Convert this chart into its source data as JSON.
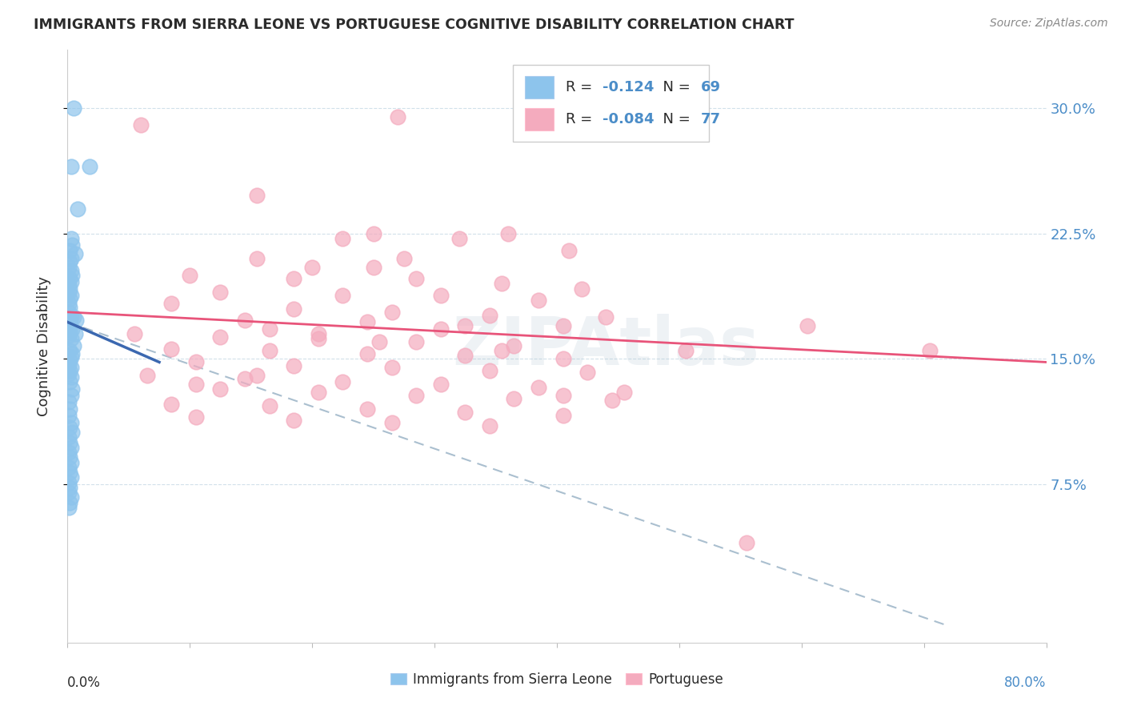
{
  "title": "IMMIGRANTS FROM SIERRA LEONE VS PORTUGUESE COGNITIVE DISABILITY CORRELATION CHART",
  "source": "Source: ZipAtlas.com",
  "ylabel": "Cognitive Disability",
  "yticks": [
    "7.5%",
    "15.0%",
    "22.5%",
    "30.0%"
  ],
  "ytick_vals": [
    0.075,
    0.15,
    0.225,
    0.3
  ],
  "xlim": [
    0.0,
    0.8
  ],
  "ylim": [
    -0.02,
    0.335
  ],
  "legend_R1": "-0.124",
  "legend_N1": "69",
  "legend_R2": "-0.084",
  "legend_N2": "77",
  "color_blue": "#8DC4EC",
  "color_pink": "#F4ABBE",
  "color_trend_blue": "#3B68B0",
  "color_trend_pink": "#E8547A",
  "color_trend_dashed": "#AABFCF",
  "color_right_axis": "#4B8DC8",
  "color_text_dark": "#2B2B2B",
  "sierra_leone_x": [
    0.005,
    0.018,
    0.003,
    0.008,
    0.003,
    0.004,
    0.002,
    0.006,
    0.003,
    0.002,
    0.001,
    0.003,
    0.004,
    0.002,
    0.003,
    0.001,
    0.002,
    0.001,
    0.003,
    0.002,
    0.001,
    0.002,
    0.001,
    0.003,
    0.002,
    0.001,
    0.002,
    0.001,
    0.002,
    0.001,
    0.005,
    0.007,
    0.004,
    0.006,
    0.003,
    0.005,
    0.002,
    0.004,
    0.003,
    0.002,
    0.001,
    0.003,
    0.002,
    0.001,
    0.003,
    0.002,
    0.004,
    0.003,
    0.001,
    0.002,
    0.001,
    0.003,
    0.002,
    0.004,
    0.001,
    0.002,
    0.003,
    0.001,
    0.002,
    0.003,
    0.001,
    0.002,
    0.003,
    0.001,
    0.002,
    0.001,
    0.003,
    0.002,
    0.001
  ],
  "sierra_leone_y": [
    0.3,
    0.265,
    0.265,
    0.24,
    0.222,
    0.218,
    0.215,
    0.213,
    0.21,
    0.208,
    0.205,
    0.203,
    0.2,
    0.198,
    0.196,
    0.194,
    0.192,
    0.19,
    0.188,
    0.186,
    0.183,
    0.181,
    0.178,
    0.175,
    0.173,
    0.171,
    0.169,
    0.168,
    0.166,
    0.164,
    0.175,
    0.173,
    0.168,
    0.165,
    0.162,
    0.158,
    0.155,
    0.153,
    0.151,
    0.149,
    0.147,
    0.145,
    0.143,
    0.141,
    0.139,
    0.136,
    0.132,
    0.128,
    0.124,
    0.12,
    0.116,
    0.112,
    0.109,
    0.106,
    0.103,
    0.1,
    0.097,
    0.094,
    0.091,
    0.088,
    0.085,
    0.082,
    0.079,
    0.076,
    0.073,
    0.07,
    0.067,
    0.064,
    0.061
  ],
  "portuguese_x": [
    0.06,
    0.27,
    0.155,
    0.25,
    0.36,
    0.225,
    0.32,
    0.41,
    0.155,
    0.2,
    0.25,
    0.1,
    0.185,
    0.285,
    0.355,
    0.42,
    0.125,
    0.225,
    0.305,
    0.385,
    0.085,
    0.185,
    0.265,
    0.345,
    0.44,
    0.145,
    0.245,
    0.325,
    0.405,
    0.165,
    0.055,
    0.125,
    0.205,
    0.285,
    0.365,
    0.085,
    0.165,
    0.245,
    0.325,
    0.405,
    0.105,
    0.185,
    0.265,
    0.345,
    0.425,
    0.065,
    0.145,
    0.225,
    0.305,
    0.385,
    0.125,
    0.205,
    0.285,
    0.365,
    0.445,
    0.085,
    0.165,
    0.245,
    0.325,
    0.405,
    0.105,
    0.185,
    0.265,
    0.345,
    0.505,
    0.605,
    0.705,
    0.275,
    0.305,
    0.355,
    0.205,
    0.255,
    0.155,
    0.105,
    0.405,
    0.455,
    0.555
  ],
  "portuguese_y": [
    0.29,
    0.295,
    0.248,
    0.225,
    0.225,
    0.222,
    0.222,
    0.215,
    0.21,
    0.205,
    0.205,
    0.2,
    0.198,
    0.198,
    0.195,
    0.192,
    0.19,
    0.188,
    0.188,
    0.185,
    0.183,
    0.18,
    0.178,
    0.176,
    0.175,
    0.173,
    0.172,
    0.17,
    0.17,
    0.168,
    0.165,
    0.163,
    0.162,
    0.16,
    0.158,
    0.156,
    0.155,
    0.153,
    0.152,
    0.15,
    0.148,
    0.146,
    0.145,
    0.143,
    0.142,
    0.14,
    0.138,
    0.136,
    0.135,
    0.133,
    0.132,
    0.13,
    0.128,
    0.126,
    0.125,
    0.123,
    0.122,
    0.12,
    0.118,
    0.116,
    0.115,
    0.113,
    0.112,
    0.11,
    0.155,
    0.17,
    0.155,
    0.21,
    0.168,
    0.155,
    0.165,
    0.16,
    0.14,
    0.135,
    0.128,
    0.13,
    0.04
  ],
  "sl_trend_x": [
    0.0,
    0.075
  ],
  "sl_trend_y_start": 0.172,
  "sl_trend_y_end": 0.148,
  "pt_trend_x": [
    0.0,
    0.8
  ],
  "pt_trend_y_start": 0.178,
  "pt_trend_y_end": 0.148,
  "dash_trend_x": [
    0.0,
    0.72
  ],
  "dash_trend_y_start": 0.172,
  "dash_trend_y_end": -0.01
}
